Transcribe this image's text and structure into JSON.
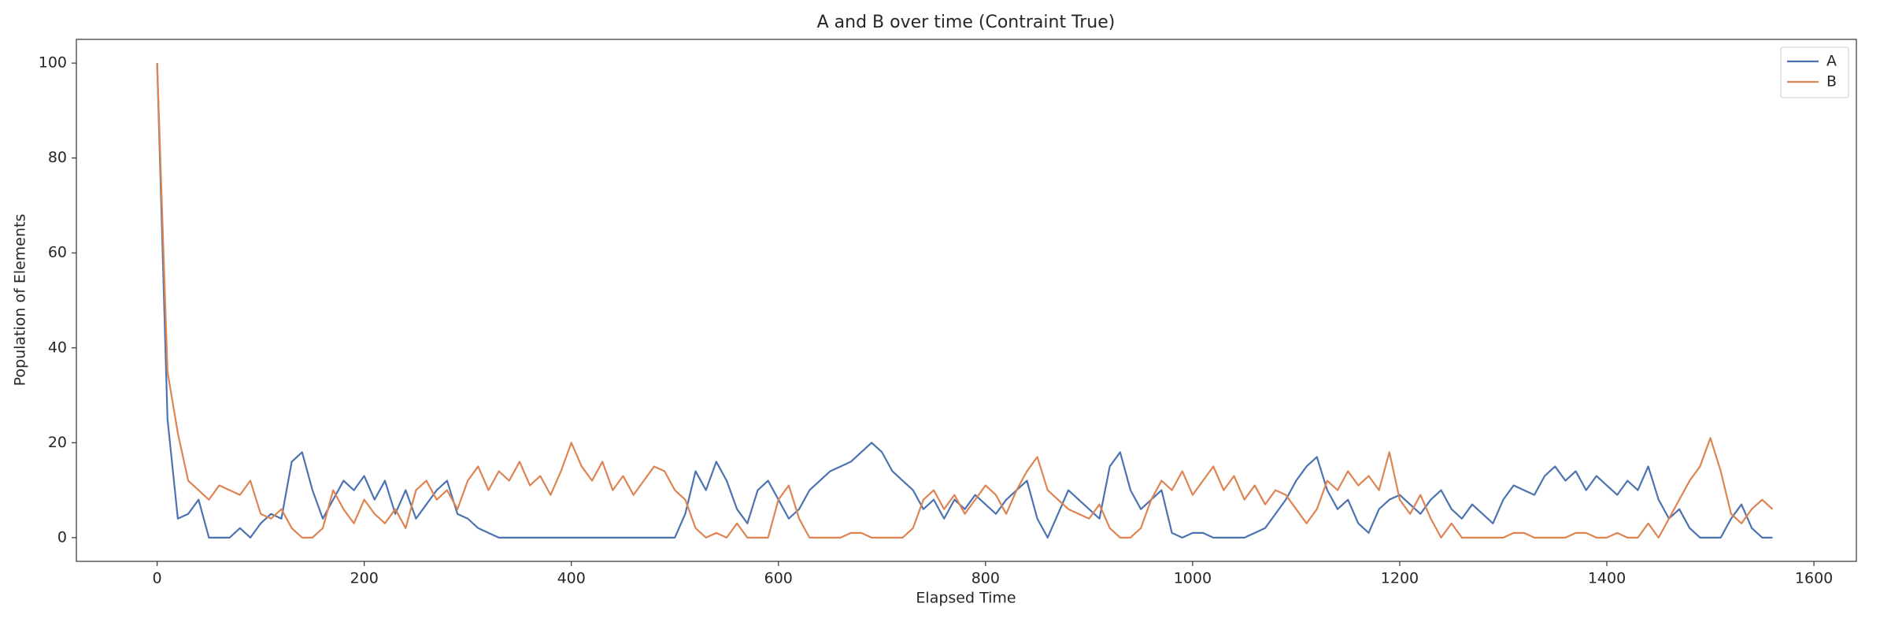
{
  "chart_data": {
    "type": "line",
    "title": "A and B over time (Contraint True)",
    "x_label": "Elapsed Time",
    "y_label": "Population of Elements",
    "x": [
      0,
      10,
      20,
      30,
      40,
      50,
      60,
      70,
      80,
      90,
      100,
      110,
      120,
      130,
      140,
      150,
      160,
      170,
      180,
      190,
      200,
      210,
      220,
      230,
      240,
      250,
      260,
      270,
      280,
      290,
      300,
      310,
      320,
      330,
      340,
      350,
      360,
      370,
      380,
      390,
      400,
      410,
      420,
      430,
      440,
      450,
      460,
      470,
      480,
      490,
      500,
      510,
      520,
      530,
      540,
      550,
      560,
      570,
      580,
      590,
      600,
      610,
      620,
      630,
      640,
      650,
      660,
      670,
      680,
      690,
      700,
      710,
      720,
      730,
      740,
      750,
      760,
      770,
      780,
      790,
      800,
      810,
      820,
      830,
      840,
      850,
      860,
      870,
      880,
      890,
      900,
      910,
      920,
      930,
      940,
      950,
      960,
      970,
      980,
      990,
      1000,
      1010,
      1020,
      1030,
      1040,
      1050,
      1060,
      1070,
      1080,
      1090,
      1100,
      1110,
      1120,
      1130,
      1140,
      1150,
      1160,
      1170,
      1180,
      1190,
      1200,
      1210,
      1220,
      1230,
      1240,
      1250,
      1260,
      1270,
      1280,
      1290,
      1300,
      1310,
      1320,
      1330,
      1340,
      1350,
      1360,
      1370,
      1380,
      1390,
      1400,
      1410,
      1420,
      1430,
      1440,
      1450,
      1460,
      1470,
      1480,
      1490,
      1500,
      1510,
      1520,
      1530,
      1540,
      1550,
      1560
    ],
    "series": [
      {
        "name": "A",
        "color": "#4c72b0",
        "values": [
          100,
          25,
          4,
          5,
          8,
          0,
          0,
          0,
          2,
          0,
          3,
          5,
          4,
          16,
          18,
          10,
          4,
          8,
          12,
          10,
          13,
          8,
          12,
          5,
          10,
          4,
          7,
          10,
          12,
          5,
          4,
          2,
          1,
          0,
          0,
          0,
          0,
          0,
          0,
          0,
          0,
          0,
          0,
          0,
          0,
          0,
          0,
          0,
          0,
          0,
          0,
          5,
          14,
          10,
          16,
          12,
          6,
          3,
          10,
          12,
          8,
          4,
          6,
          10,
          12,
          14,
          15,
          16,
          18,
          20,
          18,
          14,
          12,
          10,
          6,
          8,
          4,
          8,
          6,
          9,
          7,
          5,
          8,
          10,
          12,
          4,
          0,
          5,
          10,
          8,
          6,
          4,
          15,
          18,
          10,
          6,
          8,
          10,
          1,
          0,
          1,
          1,
          0,
          0,
          0,
          0,
          1,
          2,
          5,
          8,
          12,
          15,
          17,
          10,
          6,
          8,
          3,
          1,
          6,
          8,
          9,
          7,
          5,
          8,
          10,
          6,
          4,
          7,
          5,
          3,
          8,
          11,
          10,
          9,
          13,
          15,
          12,
          14,
          10,
          13,
          11,
          9,
          12,
          10,
          15,
          8,
          4,
          6,
          2,
          0,
          0,
          0,
          4,
          7,
          2,
          0,
          0
        ]
      },
      {
        "name": "B",
        "color": "#dd8452",
        "values": [
          100,
          35,
          22,
          12,
          10,
          8,
          11,
          10,
          9,
          12,
          5,
          4,
          6,
          2,
          0,
          0,
          2,
          10,
          6,
          3,
          8,
          5,
          3,
          6,
          2,
          10,
          12,
          8,
          10,
          6,
          12,
          15,
          10,
          14,
          12,
          16,
          11,
          13,
          9,
          14,
          20,
          15,
          12,
          16,
          10,
          13,
          9,
          12,
          15,
          14,
          10,
          8,
          2,
          0,
          1,
          0,
          3,
          0,
          0,
          0,
          8,
          11,
          4,
          0,
          0,
          0,
          0,
          1,
          1,
          0,
          0,
          0,
          0,
          2,
          8,
          10,
          6,
          9,
          5,
          8,
          11,
          9,
          5,
          10,
          14,
          17,
          10,
          8,
          6,
          5,
          4,
          7,
          2,
          0,
          0,
          2,
          8,
          12,
          10,
          14,
          9,
          12,
          15,
          10,
          13,
          8,
          11,
          7,
          10,
          9,
          6,
          3,
          6,
          12,
          10,
          14,
          11,
          13,
          10,
          18,
          8,
          5,
          9,
          4,
          0,
          3,
          0,
          0,
          0,
          0,
          0,
          1,
          1,
          0,
          0,
          0,
          0,
          1,
          1,
          0,
          0,
          1,
          0,
          0,
          3,
          0,
          4,
          8,
          12,
          15,
          21,
          14,
          5,
          3,
          6,
          8,
          6
        ]
      }
    ],
    "xlim": [
      -78,
      1641
    ],
    "ylim": [
      -5,
      105
    ],
    "xticks": [
      0,
      200,
      400,
      600,
      800,
      1000,
      1200,
      1400,
      1600
    ],
    "yticks": [
      0,
      20,
      40,
      60,
      80,
      100
    ],
    "legend": "upper right"
  }
}
